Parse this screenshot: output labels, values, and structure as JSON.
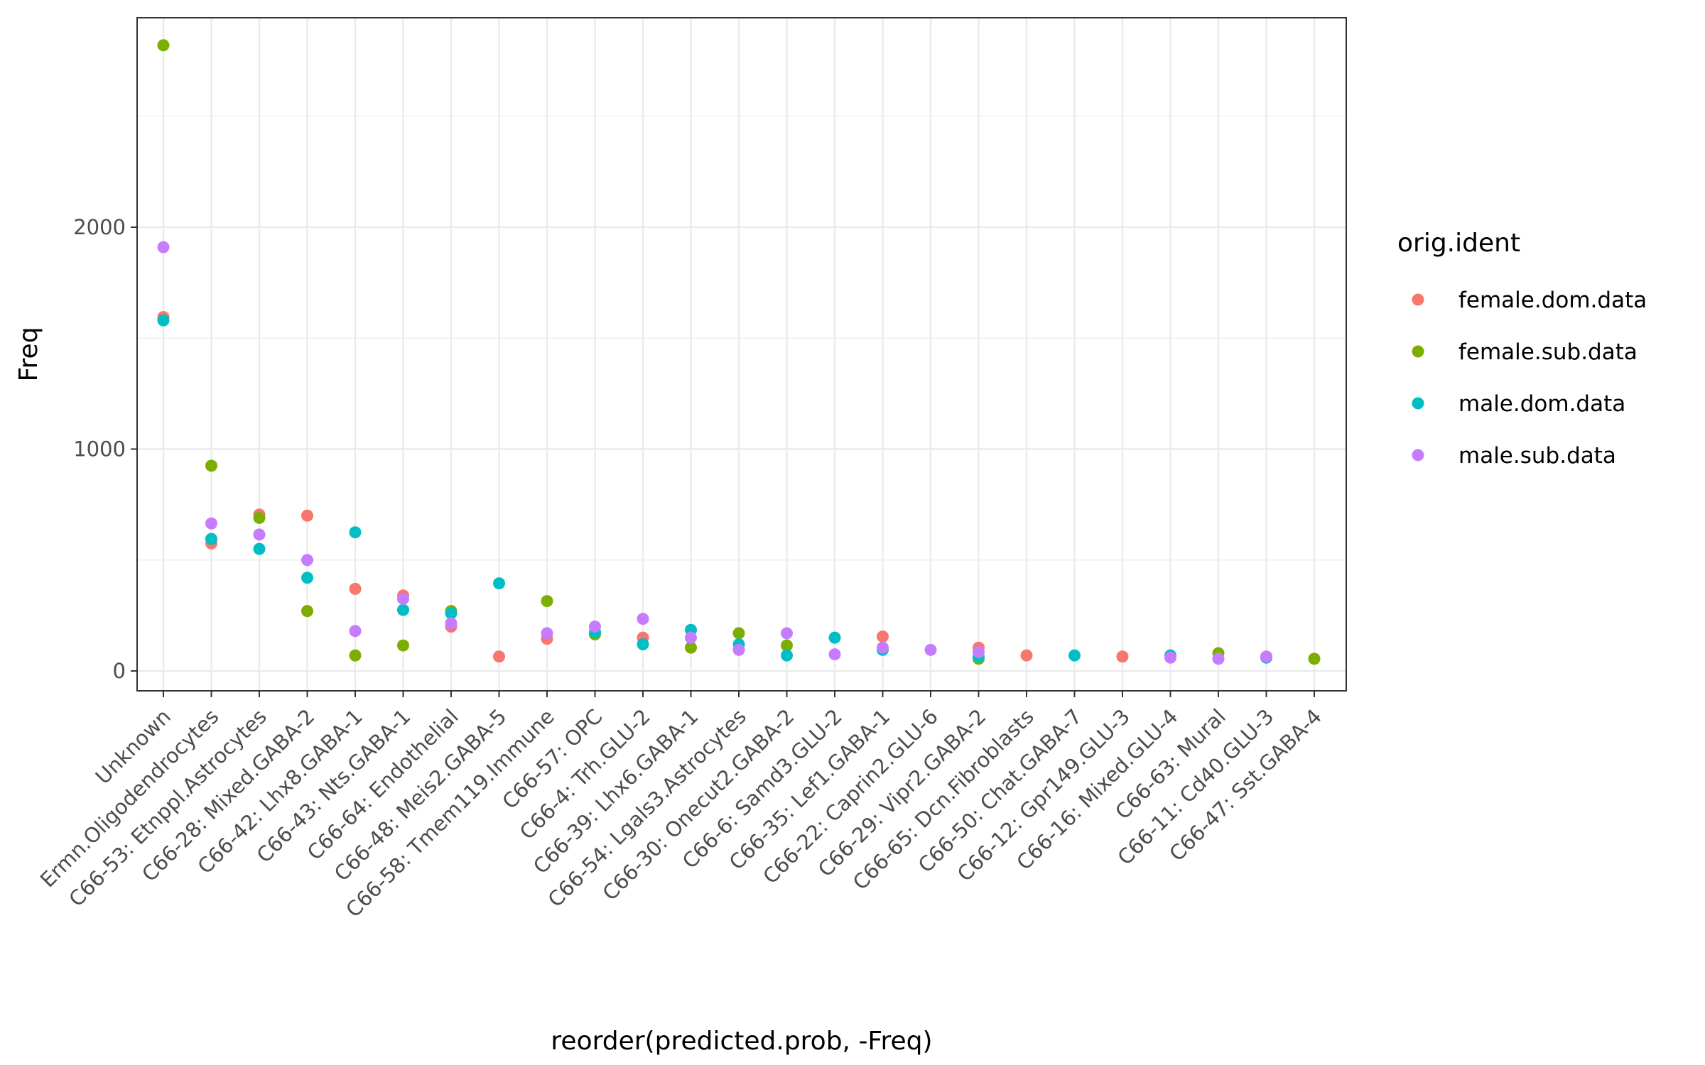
{
  "chart_data": {
    "type": "scatter",
    "xlabel": "reorder(predicted.prob, -Freq)",
    "ylabel": "Freq",
    "ylim": [
      -80,
      2950
    ],
    "yticks": [
      0,
      1000,
      2000
    ],
    "grid": true,
    "legend": {
      "title": "orig.ident",
      "placement": "right"
    },
    "categories": [
      "Unknown",
      "Ermn.Oligodendrocytes",
      "C66-53: Etnppl.Astrocytes",
      "C66-28: Mixed.GABA-2",
      "C66-42: Lhx8.GABA-1",
      "C66-43: Nts.GABA-1",
      "C66-64: Endothelial",
      "C66-48: Meis2.GABA-5",
      "C66-58: Tmem119.Immune",
      "C66-57: OPC",
      "C66-4: Trh.GLU-2",
      "C66-39: Lhx6.GABA-1",
      "C66-54: Lgals3.Astrocytes",
      "C66-30: Onecut2.GABA-2",
      "C66-6: Samd3.GLU-2",
      "C66-35: Lef1.GABA-1",
      "C66-22: Caprin2.GLU-6",
      "C66-29: Vipr2.GABA-2",
      "C66-65: Dcn.Fibroblasts",
      "C66-50: Chat.GABA-7",
      "C66-12: Gpr149.GLU-3",
      "C66-16: Mixed.GLU-4",
      "C66-63: Mural",
      "C66-11: Cd40.GLU-3",
      "C66-47: Sst.GABA-4"
    ],
    "series": [
      {
        "name": "female.dom.data",
        "color": "#F8766D",
        "values": [
          1595,
          575,
          705,
          700,
          370,
          340,
          200,
          65,
          145,
          null,
          150,
          null,
          null,
          null,
          null,
          155,
          null,
          105,
          70,
          null,
          65,
          null,
          null,
          null,
          null
        ]
      },
      {
        "name": "female.sub.data",
        "color": "#7CAE00",
        "values": [
          2820,
          925,
          690,
          270,
          70,
          115,
          270,
          null,
          315,
          165,
          null,
          105,
          170,
          115,
          null,
          null,
          null,
          55,
          null,
          null,
          null,
          null,
          80,
          null,
          55
        ]
      },
      {
        "name": "male.dom.data",
        "color": "#00BFC4",
        "values": [
          1580,
          595,
          550,
          420,
          625,
          275,
          260,
          395,
          null,
          175,
          120,
          185,
          120,
          70,
          150,
          95,
          null,
          65,
          null,
          70,
          null,
          70,
          null,
          60,
          null
        ]
      },
      {
        "name": "male.sub.data",
        "color": "#C77CFF",
        "values": [
          1910,
          665,
          615,
          500,
          180,
          325,
          215,
          null,
          170,
          200,
          235,
          150,
          95,
          170,
          75,
          105,
          95,
          85,
          null,
          null,
          null,
          60,
          55,
          65,
          null
        ]
      }
    ]
  }
}
